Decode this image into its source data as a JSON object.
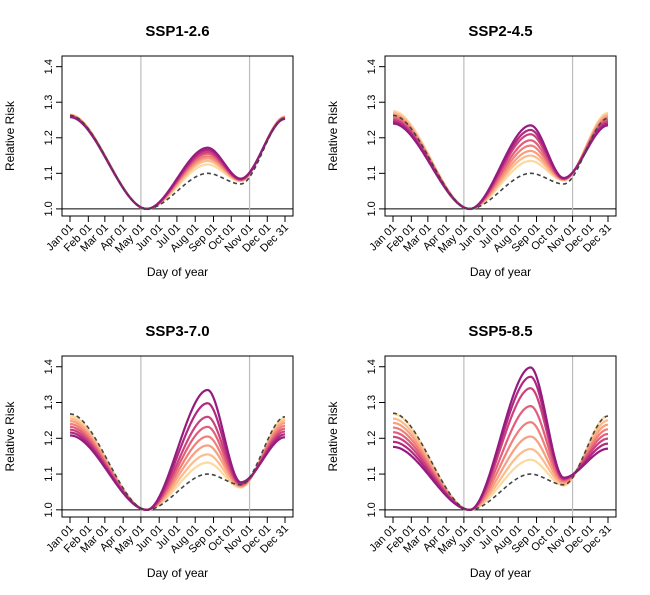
{
  "colors": {
    "baseline": "#444444",
    "scenario_ramp": [
      "#fdd9a0",
      "#fcbc8b",
      "#f99e7e",
      "#f07e79",
      "#e25e7a",
      "#cc427d",
      "#b0287f",
      "#951b7f"
    ],
    "grid_vline": "#bdbdbd"
  },
  "chart_data": [
    {
      "type": "line",
      "title": "SSP1-2.6",
      "xlabel": "Day of year",
      "ylabel": "Relative Risk",
      "x_tick_labels": [
        "Jan 01",
        "Feb 01",
        "Mar 01",
        "Apr 01",
        "May 01",
        "Jun 01",
        "Jul 01",
        "Aug 01",
        "Sep 01",
        "Oct 01",
        "Nov 01",
        "Dec 01",
        "Dec 31"
      ],
      "y_tick_labels": [
        "1.0",
        "1.1",
        "1.2",
        "1.3",
        "1.4"
      ],
      "ylim": [
        0.98,
        1.43
      ],
      "reference_lines": {
        "horizontal_y": 1.0,
        "vertical_dates": [
          "May 01",
          "Nov 01"
        ]
      },
      "grid": false,
      "baseline": {
        "line_style": "dashed",
        "jan": 1.263,
        "min_day": 131,
        "summer_peak": 1.1,
        "peak_day": 234,
        "trough": 1.07,
        "trough_day": 290,
        "dec": 1.255
      },
      "series": [
        {
          "jan": 1.265,
          "summer_peak": 1.125,
          "trough": 1.078
        },
        {
          "jan": 1.264,
          "summer_peak": 1.135,
          "trough": 1.079
        },
        {
          "jan": 1.263,
          "summer_peak": 1.142,
          "trough": 1.08
        },
        {
          "jan": 1.262,
          "summer_peak": 1.148,
          "trough": 1.081
        },
        {
          "jan": 1.261,
          "summer_peak": 1.155,
          "trough": 1.082
        },
        {
          "jan": 1.26,
          "summer_peak": 1.16,
          "trough": 1.083
        },
        {
          "jan": 1.259,
          "summer_peak": 1.166,
          "trough": 1.084
        },
        {
          "jan": 1.258,
          "summer_peak": 1.172,
          "trough": 1.085
        }
      ]
    },
    {
      "type": "line",
      "title": "SSP2-4.5",
      "xlabel": "Day of year",
      "ylabel": "Relative Risk",
      "x_tick_labels": [
        "Jan 01",
        "Feb 01",
        "Mar 01",
        "Apr 01",
        "May 01",
        "Jun 01",
        "Jul 01",
        "Aug 01",
        "Sep 01",
        "Oct 01",
        "Nov 01",
        "Dec 01",
        "Dec 31"
      ],
      "y_tick_labels": [
        "1.0",
        "1.1",
        "1.2",
        "1.3",
        "1.4"
      ],
      "ylim": [
        0.98,
        1.43
      ],
      "reference_lines": {
        "horizontal_y": 1.0,
        "vertical_dates": [
          "May 01",
          "Nov 01"
        ]
      },
      "grid": false,
      "baseline": {
        "line_style": "dashed",
        "jan": 1.263,
        "min_day": 131,
        "summer_peak": 1.1,
        "peak_day": 234,
        "trough": 1.07,
        "trough_day": 290,
        "dec": 1.255
      },
      "series": [
        {
          "jan": 1.275,
          "summer_peak": 1.135,
          "trough": 1.08
        },
        {
          "jan": 1.27,
          "summer_peak": 1.15,
          "trough": 1.081
        },
        {
          "jan": 1.265,
          "summer_peak": 1.163,
          "trough": 1.082
        },
        {
          "jan": 1.26,
          "summer_peak": 1.178,
          "trough": 1.083
        },
        {
          "jan": 1.255,
          "summer_peak": 1.193,
          "trough": 1.084
        },
        {
          "jan": 1.25,
          "summer_peak": 1.21,
          "trough": 1.085
        },
        {
          "jan": 1.245,
          "summer_peak": 1.222,
          "trough": 1.086
        },
        {
          "jan": 1.24,
          "summer_peak": 1.235,
          "trough": 1.087
        }
      ]
    },
    {
      "type": "line",
      "title": "SSP3-7.0",
      "xlabel": "Day of year",
      "ylabel": "Relative Risk",
      "x_tick_labels": [
        "Jan 01",
        "Feb 01",
        "Mar 01",
        "Apr 01",
        "May 01",
        "Jun 01",
        "Jul 01",
        "Aug 01",
        "Sep 01",
        "Oct 01",
        "Nov 01",
        "Dec 01",
        "Dec 31"
      ],
      "y_tick_labels": [
        "1.0",
        "1.1",
        "1.2",
        "1.3",
        "1.4"
      ],
      "ylim": [
        0.98,
        1.43
      ],
      "reference_lines": {
        "horizontal_y": 1.0,
        "vertical_dates": [
          "May 01",
          "Nov 01"
        ]
      },
      "grid": false,
      "baseline": {
        "line_style": "dashed",
        "jan": 1.268,
        "min_day": 131,
        "summer_peak": 1.1,
        "peak_day": 234,
        "trough": 1.07,
        "trough_day": 290,
        "dec": 1.26
      },
      "series": [
        {
          "jan": 1.262,
          "summer_peak": 1.132,
          "trough": 1.062
        },
        {
          "jan": 1.255,
          "summer_peak": 1.155,
          "trough": 1.064
        },
        {
          "jan": 1.248,
          "summer_peak": 1.18,
          "trough": 1.066
        },
        {
          "jan": 1.24,
          "summer_peak": 1.205,
          "trough": 1.068
        },
        {
          "jan": 1.232,
          "summer_peak": 1.232,
          "trough": 1.07
        },
        {
          "jan": 1.224,
          "summer_peak": 1.26,
          "trough": 1.072
        },
        {
          "jan": 1.216,
          "summer_peak": 1.298,
          "trough": 1.074
        },
        {
          "jan": 1.208,
          "summer_peak": 1.335,
          "trough": 1.077
        }
      ]
    },
    {
      "type": "line",
      "title": "SSP5-8.5",
      "xlabel": "Day of year",
      "ylabel": "Relative Risk",
      "x_tick_labels": [
        "Jan 01",
        "Feb 01",
        "Mar 01",
        "Apr 01",
        "May 01",
        "Jun 01",
        "Jul 01",
        "Aug 01",
        "Sep 01",
        "Oct 01",
        "Nov 01",
        "Dec 01",
        "Dec 31"
      ],
      "y_tick_labels": [
        "1.0",
        "1.1",
        "1.2",
        "1.3",
        "1.4"
      ],
      "ylim": [
        0.98,
        1.43
      ],
      "reference_lines": {
        "horizontal_y": 1.0,
        "vertical_dates": [
          "May 01",
          "Nov 01"
        ]
      },
      "grid": false,
      "baseline": {
        "line_style": "dashed",
        "jan": 1.27,
        "min_day": 131,
        "summer_peak": 1.1,
        "peak_day": 234,
        "trough": 1.07,
        "trough_day": 290,
        "dec": 1.262
      },
      "series": [
        {
          "jan": 1.268,
          "summer_peak": 1.14,
          "trough": 1.068
        },
        {
          "jan": 1.255,
          "summer_peak": 1.17,
          "trough": 1.072
        },
        {
          "jan": 1.243,
          "summer_peak": 1.205,
          "trough": 1.076
        },
        {
          "jan": 1.23,
          "summer_peak": 1.245,
          "trough": 1.08
        },
        {
          "jan": 1.217,
          "summer_peak": 1.29,
          "trough": 1.083
        },
        {
          "jan": 1.204,
          "summer_peak": 1.34,
          "trough": 1.086
        },
        {
          "jan": 1.19,
          "summer_peak": 1.372,
          "trough": 1.088
        },
        {
          "jan": 1.176,
          "summer_peak": 1.398,
          "trough": 1.09
        }
      ]
    }
  ]
}
